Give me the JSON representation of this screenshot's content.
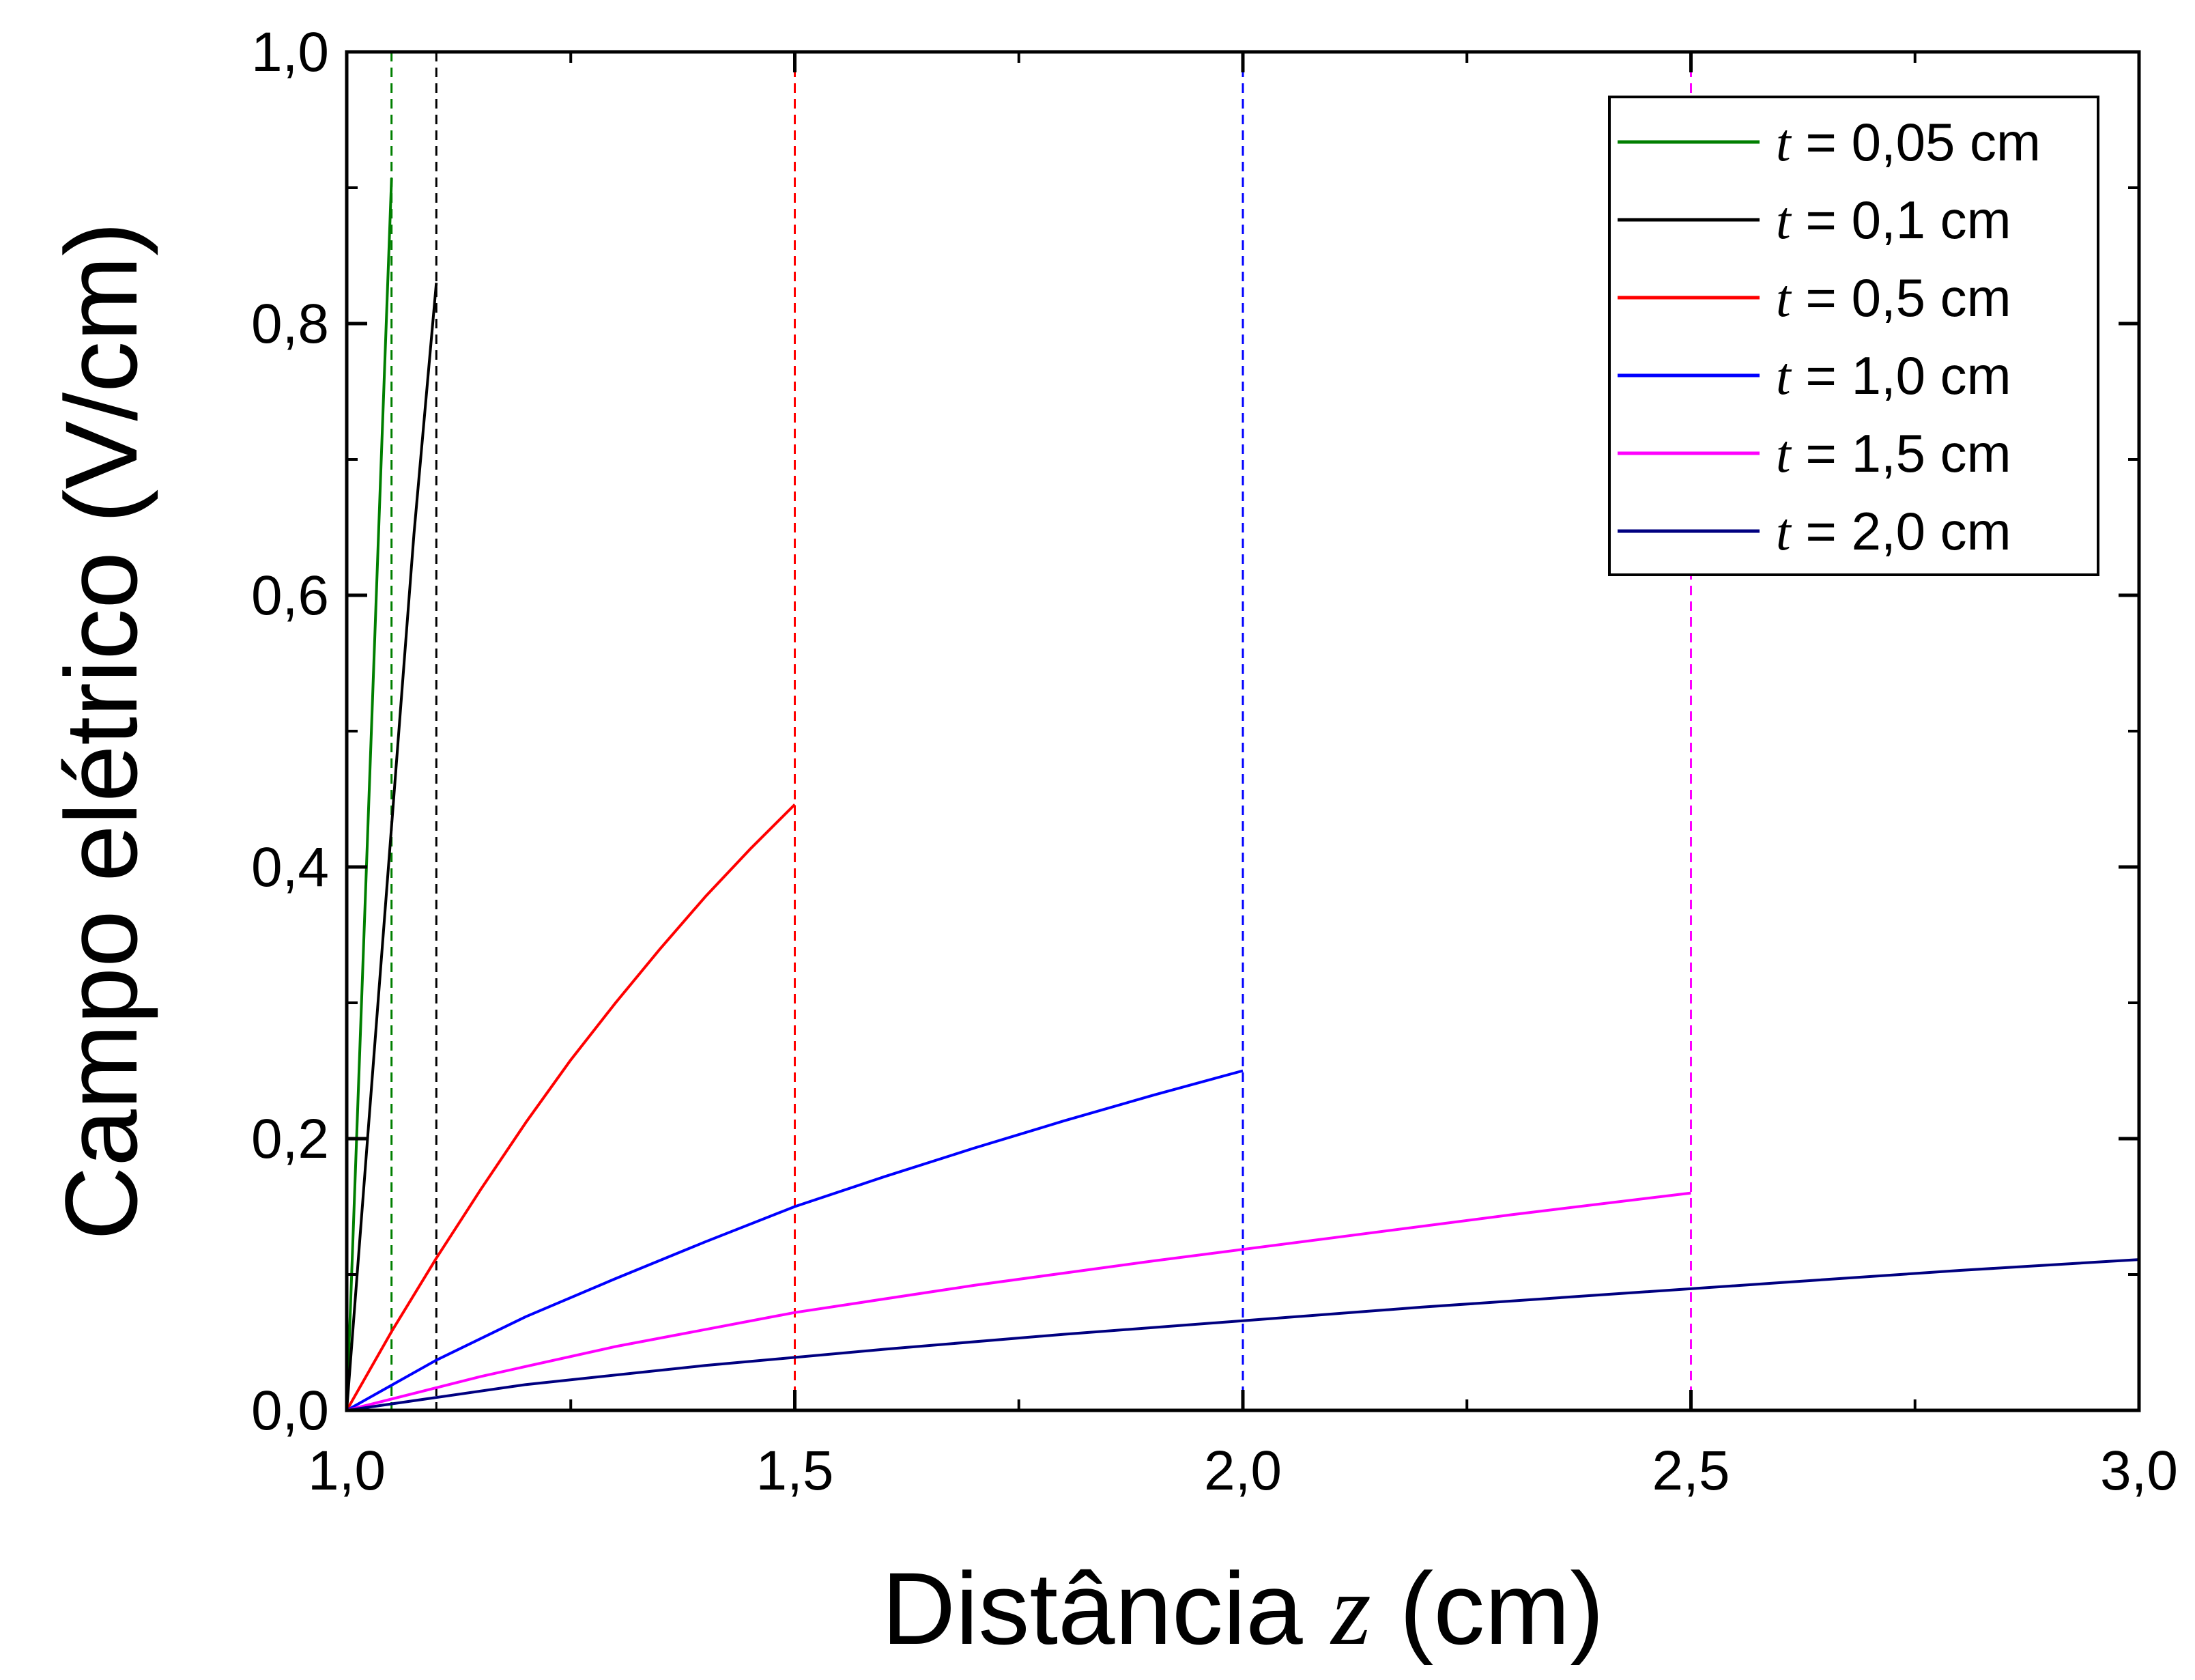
{
  "chart_data": {
    "type": "line",
    "xlabel_prefix": "Distância ",
    "xlabel_var": "z",
    "xlabel_suffix": " (cm)",
    "ylabel": "Campo elétrico (V/cm)",
    "xlim": [
      1.0,
      3.0
    ],
    "ylim": [
      0.0,
      1.0
    ],
    "x_ticks": [
      "1,0",
      "1,5",
      "2,0",
      "2,5",
      "3,0"
    ],
    "y_ticks": [
      "0,0",
      "0,2",
      "0,4",
      "0,6",
      "0,8",
      "1,0"
    ],
    "grid": false,
    "legend_position": "top-right",
    "legend_var": "t",
    "series": [
      {
        "name": " = 0,05 cm",
        "color": "#007f00",
        "x": [
          1.0,
          1.0125,
          1.025,
          1.0375,
          1.05
        ],
        "y": [
          0.0,
          0.227,
          0.454,
          0.681,
          0.907
        ],
        "cutoff": 1.05
      },
      {
        "name": " = 0,1 cm",
        "color": "#000000",
        "x": [
          1.0,
          1.025,
          1.05,
          1.075,
          1.1
        ],
        "y": [
          0.0,
          0.215,
          0.43,
          0.645,
          0.83
        ],
        "cutoff": 1.1
      },
      {
        "name": " = 0,5 cm",
        "color": "#ff0000",
        "x": [
          1.0,
          1.05,
          1.1,
          1.15,
          1.2,
          1.25,
          1.3,
          1.35,
          1.4,
          1.45,
          1.5
        ],
        "y": [
          0.0,
          0.058,
          0.112,
          0.163,
          0.212,
          0.258,
          0.3,
          0.34,
          0.378,
          0.413,
          0.446
        ],
        "cutoff": 1.5
      },
      {
        "name": " = 1,0 cm",
        "color": "#0000ff",
        "x": [
          1.0,
          1.1,
          1.2,
          1.3,
          1.4,
          1.5,
          1.6,
          1.7,
          1.8,
          1.9,
          2.0
        ],
        "y": [
          0.0,
          0.037,
          0.069,
          0.097,
          0.124,
          0.15,
          0.172,
          0.193,
          0.213,
          0.232,
          0.25
        ],
        "cutoff": 2.0
      },
      {
        "name": " = 1,5 cm",
        "color": "#ff00ff",
        "x": [
          1.0,
          1.15,
          1.3,
          1.5,
          1.7,
          1.9,
          2.1,
          2.3,
          2.5
        ],
        "y": [
          0.0,
          0.025,
          0.047,
          0.072,
          0.092,
          0.11,
          0.127,
          0.144,
          0.16
        ],
        "cutoff": 2.5
      },
      {
        "name": " = 2,0 cm",
        "color": "#000080",
        "x": [
          1.0,
          1.2,
          1.4,
          1.6,
          1.8,
          2.0,
          2.2,
          2.4,
          2.6,
          2.8,
          3.0
        ],
        "y": [
          0.0,
          0.019,
          0.033,
          0.045,
          0.056,
          0.066,
          0.076,
          0.085,
          0.094,
          0.103,
          0.111
        ],
        "cutoff": null
      }
    ]
  }
}
